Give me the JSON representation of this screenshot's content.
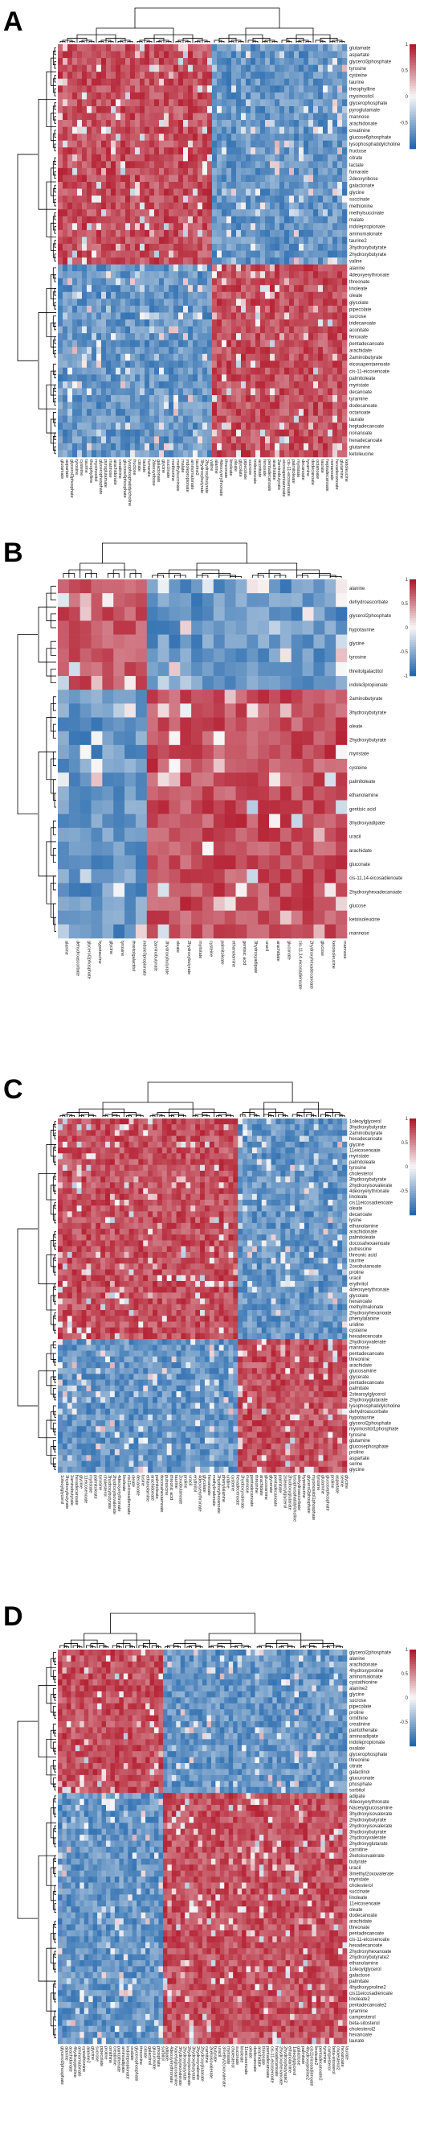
{
  "chart_data": [
    {
      "type": "heatmap",
      "panel": "A",
      "row_labels": [
        "glutamate",
        "aspartate",
        "glycerol3phosphate",
        "tyrosine",
        "cysteine",
        "taurine",
        "theophylline",
        "myoinositol",
        "glycerophosphate",
        "pyroglutamate",
        "mannose",
        "arachidonate",
        "creatinine",
        "glucose6phosphate",
        "lysophosphatidylcholine",
        "fructose",
        "citrate",
        "lactate",
        "fumarate",
        "2deoxyribose",
        "galactonate",
        "glycine",
        "succinate",
        "methionine",
        "methylsuccinate",
        "malate",
        "indolepropionate",
        "aminomalonate",
        "taurine2",
        "3hydroxybutyrate",
        "2hydroxybutyrate",
        "valine",
        "alanine",
        "4deoxyerythronate",
        "threonate",
        "linoleate",
        "oleate",
        "glycolate",
        "pipecolate",
        "sucrose",
        "tridecanoate",
        "aconitate",
        "fenoxate",
        "pentadecanoate",
        "arachidate",
        "2aminobutyrate",
        "eicosapentaenoate",
        "cis-11-eicosenoate",
        "palmitoleate",
        "myristate",
        "decanoate",
        "tyramine",
        "dodecanoate",
        "octanoate",
        "laurate",
        "heptadecanoate",
        "nonanoate",
        "hexadecanoate",
        "glutamine",
        "ketoleucine"
      ],
      "colorbar_ticks": [
        "1",
        "0.5",
        "0",
        "-0.5"
      ],
      "vmin": -1,
      "vmax": 1
    },
    {
      "type": "heatmap",
      "panel": "B",
      "row_labels": [
        "alanine",
        "dehydroascorbate",
        "glycerol2phosphate",
        "hypotaurine",
        "glycine",
        "tyrosine",
        "threitolgalactitol",
        "indole3propionate",
        "2aminobutyrate",
        "3hydroxybutyrate",
        "oleate",
        "2hydroxybutyrate",
        "myristate",
        "cysteine",
        "palmitoleate",
        "ethanolamine",
        "gentisic acid",
        "3hydroxyadipate",
        "uracil",
        "arachidate",
        "gluconate",
        "cis-11,14-eicosadienoate",
        "2hydroxyhexadecanoate",
        "glucose",
        "ketoisoleucine",
        "mannose"
      ],
      "colorbar_ticks": [
        "1",
        "0.5",
        "0",
        "-0.5",
        "-1"
      ],
      "vmin": -1,
      "vmax": 1
    },
    {
      "type": "heatmap",
      "panel": "C",
      "row_labels": [
        "1oleoylglycerol",
        "3hydroxybutyrate",
        "2aminobutyrate",
        "hexadecanoate",
        "glycine",
        "11eicosenoate",
        "myristate",
        "palmitoleate",
        "tyrosine",
        "cholesterol",
        "3hydroxybutyrate",
        "2hydroxyisovalerate",
        "4deoxyerythronate",
        "linoleate",
        "cis11eicosadienoate",
        "oleate",
        "decanoate",
        "lysine",
        "ethanolamine",
        "arachidonate",
        "palmitoleate",
        "docosahexaenoate",
        "putrescine",
        "threonic acid",
        "taurine",
        "2oxobutanoate",
        "proline",
        "uracil",
        "erythritol",
        "4deoxyerythronate",
        "glycolate",
        "hexanoate",
        "methylmalonate",
        "2hydroxyhexanoate",
        "phenylalanine",
        "uridine",
        "cysteine",
        "hexadecenoate",
        "2hydroxyvalerate",
        "mannose",
        "pentadecanoate",
        "threonine",
        "arachidate",
        "glucosamine",
        "glycerate",
        "pentadecanoate",
        "palmitate",
        "2stearoylglycerol",
        "2hydroxyglutarate",
        "lysophosphatidylcholine",
        "dehydroascorbate",
        "hypotaurine",
        "glycerol2phosphate",
        "myoinositol1phosphate",
        "tyrosine",
        "glutamine",
        "glucosephosphate",
        "proline",
        "aspartate",
        "serine",
        "glycine"
      ],
      "colorbar_ticks": [
        "1",
        "0.5",
        "0",
        "-0.5"
      ],
      "vmin": -1,
      "vmax": 1
    },
    {
      "type": "heatmap",
      "panel": "D",
      "row_labels": [
        "glycerol2phosphate",
        "alanine",
        "arachidonate",
        "4hydroxyproline",
        "aminomalonate",
        "cystathionine",
        "alanine2",
        "glycine",
        "sucrose",
        "pipecolate",
        "proline",
        "ornithine",
        "creatinine",
        "pantothenate",
        "aminoadipate",
        "indolepropionate",
        "oxalate",
        "glycerophosphate",
        "threonine",
        "citrate",
        "galactinol",
        "glucuronate",
        "phosphate",
        "sorbitol",
        "adipate",
        "4deoxyerythronate",
        "Nacetylglucosamine",
        "3hydroxyisovalerate",
        "2hydroxybutyrate",
        "2hydroxyisovalerate",
        "3hydroxybutyrate",
        "2hydroxyvalerate",
        "2hydroxyglutarate",
        "carnitine",
        "2ketoisovalerate",
        "butyrate",
        "uracil",
        "3methyl2oxovalerate",
        "myristate",
        "cholesterol",
        "succinate",
        "linoleate",
        "11eicosenoate",
        "oleate",
        "dodecanoate",
        "arachidate",
        "threonate",
        "pentadecanoate",
        "cis-11-eicosenoate",
        "hexadecanoate",
        "2hydroxyhexanoate",
        "2hydroxybutyrate2",
        "ethanolamine",
        "1oleoylglycerol",
        "galactose",
        "palmitate",
        "4hydroxyproline2",
        "cis11eicosadienoate",
        "linoleate2",
        "pentadecanoate2",
        "tyramine",
        "campesterol",
        "beta-sitosterol",
        "cholesterol2",
        "hexanoate",
        "laurate"
      ],
      "colorbar_ticks": [
        "1",
        "0.5",
        "0",
        "-0.5"
      ],
      "vmin": -1,
      "vmax": 1
    }
  ]
}
